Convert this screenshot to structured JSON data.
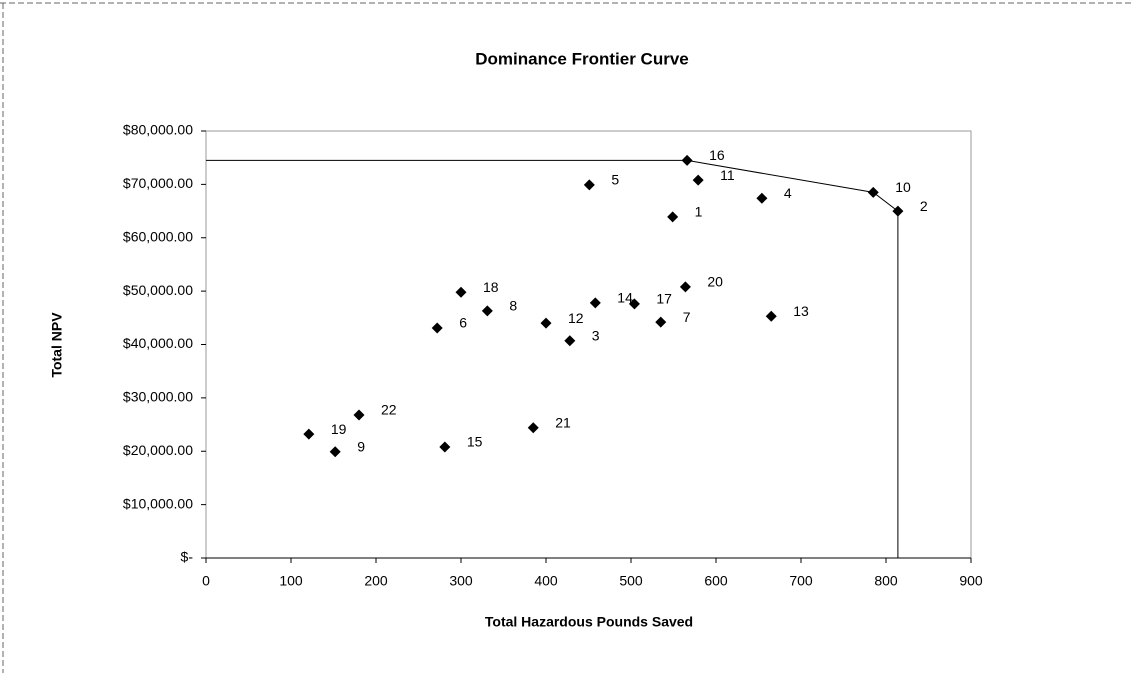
{
  "chart_data": {
    "type": "scatter",
    "title": "Dominance Frontier Curve",
    "xlabel": "Total Hazardous Pounds Saved",
    "ylabel": "Total NPV",
    "series": [
      {
        "type": "scatter",
        "color": "#000000",
        "labels": [
          "16",
          "10",
          "2",
          "5",
          "11",
          "4",
          "1",
          "18",
          "17",
          "20",
          "14",
          "6",
          "8",
          "12",
          "3",
          "7",
          "13",
          "19",
          "9",
          "22",
          "15",
          "21"
        ],
        "x": [
          566,
          785,
          814,
          451,
          579,
          654,
          549,
          300,
          504,
          564,
          458,
          272,
          331,
          400,
          428,
          535,
          665,
          121,
          152,
          180,
          281,
          385
        ],
        "y": [
          74500,
          68500,
          65000,
          69900,
          70800,
          67400,
          63900,
          49800,
          47600,
          50800,
          47800,
          43100,
          46300,
          44000,
          40700,
          44200,
          45300,
          23200,
          19900,
          26800,
          20800,
          24400
        ]
      },
      {
        "type": "line",
        "color": "#000000",
        "x": [
          0,
          566,
          785,
          814,
          814
        ],
        "y": [
          74500,
          74500,
          68500,
          65000,
          0
        ]
      }
    ],
    "xlim": [
      0,
      900
    ],
    "xticks": [
      0,
      100,
      200,
      300,
      400,
      500,
      600,
      700,
      800,
      900
    ],
    "ylim": [
      0,
      80000
    ],
    "yticks": [
      {
        "value": 0,
        "label": "$-"
      },
      {
        "value": 10000,
        "label": "$10,000.00"
      },
      {
        "value": 20000,
        "label": "$20,000.00"
      },
      {
        "value": 30000,
        "label": "$30,000.00"
      },
      {
        "value": 40000,
        "label": "$40,000.00"
      },
      {
        "value": 50000,
        "label": "$50,000.00"
      },
      {
        "value": 60000,
        "label": "$60,000.00"
      },
      {
        "value": 70000,
        "label": "$70,000.00"
      },
      {
        "value": 80000,
        "label": "$80,000.00"
      }
    ],
    "grid": false
  }
}
